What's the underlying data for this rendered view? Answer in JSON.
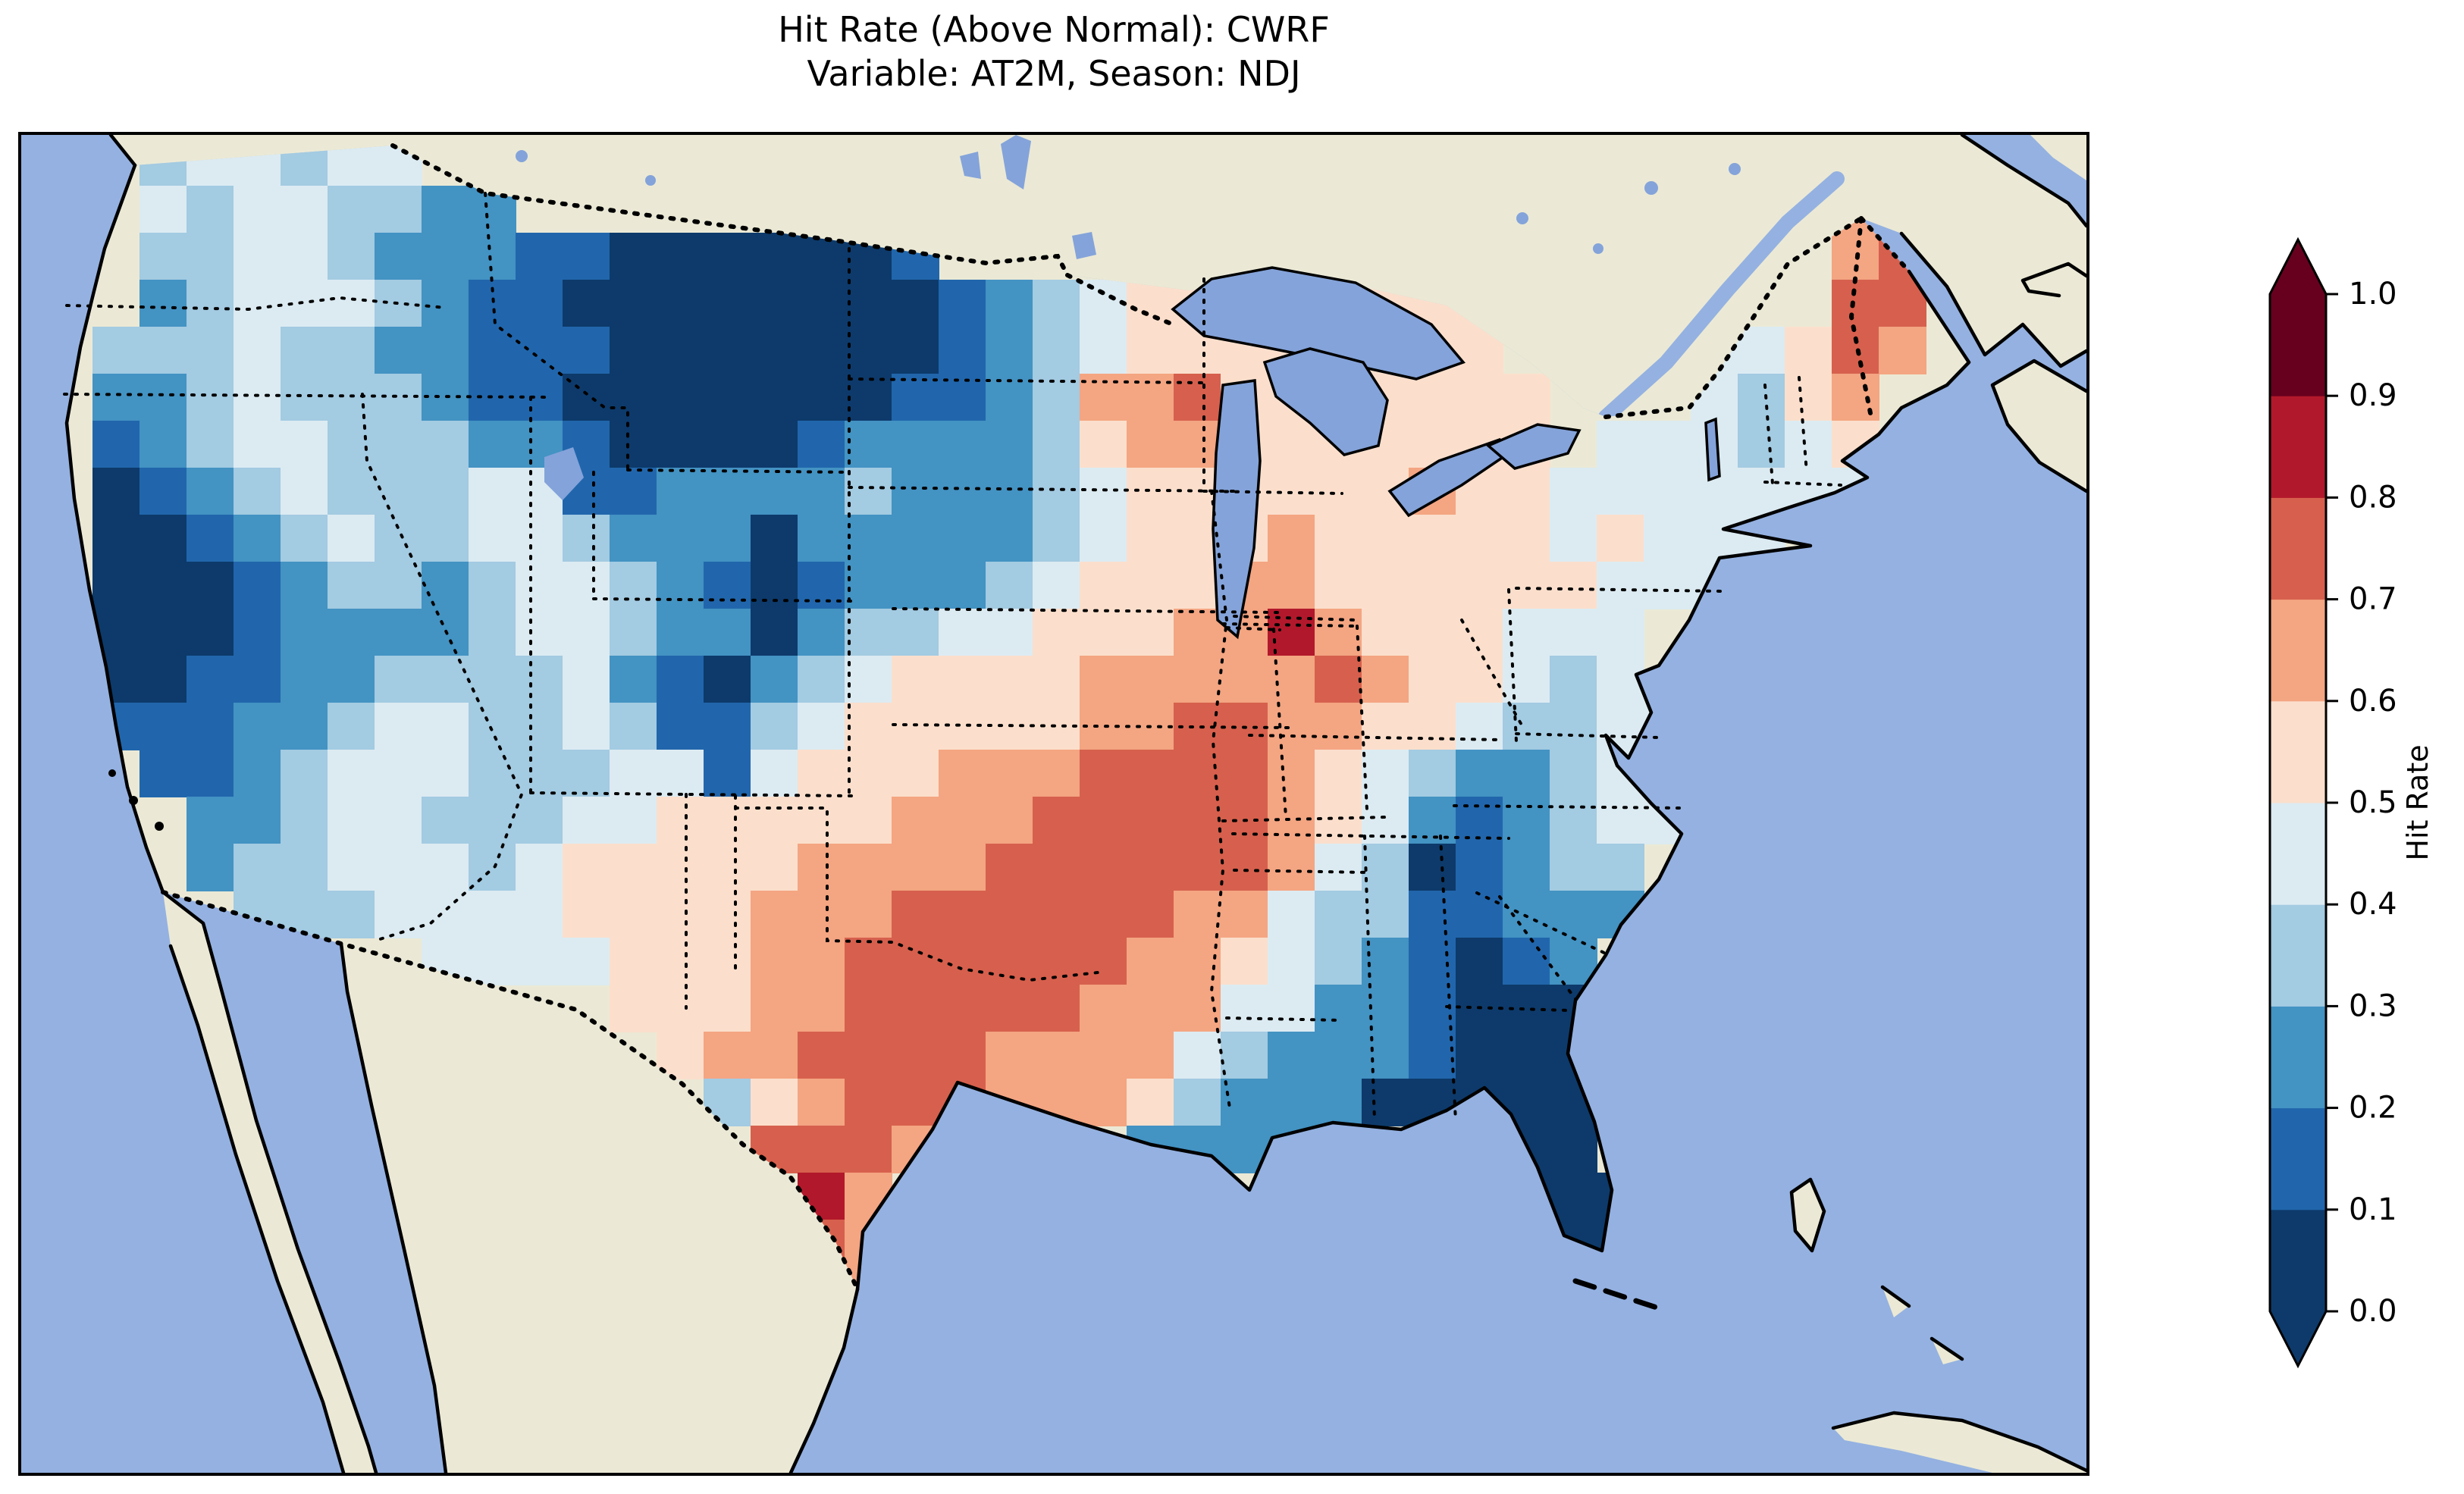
{
  "title": {
    "line1": "Hit Rate (Above Normal): CWRF",
    "line2": "Variable: AT2M, Season: NDJ"
  },
  "colorbar": {
    "label": "Hit Rate",
    "ticks": [
      "0.0",
      "0.1",
      "0.2",
      "0.3",
      "0.4",
      "0.5",
      "0.6",
      "0.7",
      "0.8",
      "0.9",
      "1.0"
    ],
    "band_colors": [
      "#0d3a6b",
      "#2166ac",
      "#4393c3",
      "#a3cbe2",
      "#dcebf2",
      "#fbdfcc",
      "#f4a582",
      "#d6604d",
      "#b2182b",
      "#67001f"
    ],
    "under_arrow_color": "#0d3a6b",
    "over_arrow_color": "#67001f",
    "extend": "both",
    "outline_color": "#000000"
  },
  "map": {
    "ocean_color": "#94b1e1",
    "land_color": "#ebe9d5",
    "lake_color": "#84a3da",
    "coastline_color": "#000000",
    "state_border_style": "dotted black",
    "country_border_style": "dotted black"
  },
  "chart_data": {
    "type": "heatmap",
    "title": "Hit Rate (Above Normal): CWRF",
    "subtitle": "Variable: AT2M, Season: NDJ",
    "metric": "Hit Rate (Above Normal)",
    "model": "CWRF",
    "variable": "AT2M",
    "season": "NDJ",
    "region": "Contiguous United States (CONUS) with surrounding Canada, Mexico, Atlantic and Pacific",
    "colormap": "RdBu_r, discrete bands of 0.1",
    "legend_label": "Hit Rate",
    "scale": {
      "min": 0.0,
      "max": 1.0,
      "step": 0.1,
      "extend": "both"
    },
    "grid": {
      "encoding": "Rows are north-to-south, one char per cell west-to-east. '.' = outside CONUS data region; digit d = hit-rate band [d/10,(d+1)/10), representative value d/10+0.05",
      "ncols": 41,
      "nrows": 26,
      "rows": [
        "..344344.................................",
        "..43443322............................66.",
        "..33443222110000001...................67.",
        "..23444321100000000123455555555.......77.",
        ".333433221110000000123455555555....44576.",
        ".2234333211000000011236675555555...4356..",
        ".1234433322100001222235665555555.444345..",
        ".01234333441122223222345555556554444444..",
        ".001234334432220222223455565555545444....",
        ".00012332344321012223455566555555444.....",
        ".000122223443220233445556686555444.......",
        ".001122333342102345555666667655434.......",
        ".1112234433431134555556677665543344......",
        "..112344433344145556667777654322344......",
        "...22344333445555566677777654212344......",
        "...2334443455555666677777764301233.......",
        "....333444455556667777776643311222.......",
        "........4444555667777776654321012........",
        "............555667777766644221000........",
        ".............56677776666432221000........",
        "..............3567776665322200000........",
        "...............7776....2222....00........",
        "................86.............000.......",
        "................76..............00.......",
        ".................6...............0.......",
        "........................................."
      ]
    },
    "regional_summary": [
      {
        "region": "Pacific Northwest (WA/OR)",
        "hit_rate": "0.2-0.45"
      },
      {
        "region": "California coast & Central Valley",
        "hit_rate": "0.0-0.15"
      },
      {
        "region": "Montana / western Dakotas / N. Rockies",
        "hit_rate": "0.0-0.1"
      },
      {
        "region": "Wyoming-Colorado Front Range stripe",
        "hit_rate": "0.0-0.1"
      },
      {
        "region": "Nebraska / central plains blue band",
        "hit_rate": "0.2-0.3"
      },
      {
        "region": "Kansas / Oklahoma / Missouri / Arkansas",
        "hit_rate": "0.6-0.8"
      },
      {
        "region": "Texas core (salmon), Del Rio spot",
        "hit_rate": "0.7-0.8 (spot 0.8-0.9)"
      },
      {
        "region": "Upper Midwest (MN/IA/IL/IN, WI orange blob)",
        "hit_rate": "0.5-0.8, isolated 0.8-0.9 cell in Indiana"
      },
      {
        "region": "Appalachians (WV/VA/TN/NC, navy core W-NC)",
        "hit_rate": "0.0-0.3"
      },
      {
        "region": "Southeast (GA/SC/AL/MS/LA coast)",
        "hit_rate": "0.1-0.3"
      },
      {
        "region": "Florida peninsula",
        "hit_rate": "0.0-0.1"
      },
      {
        "region": "Northeast (NY/PA/New England)",
        "hit_rate": "0.3-0.6"
      },
      {
        "region": "Maine",
        "hit_rate": "0.6-0.8"
      }
    ]
  }
}
